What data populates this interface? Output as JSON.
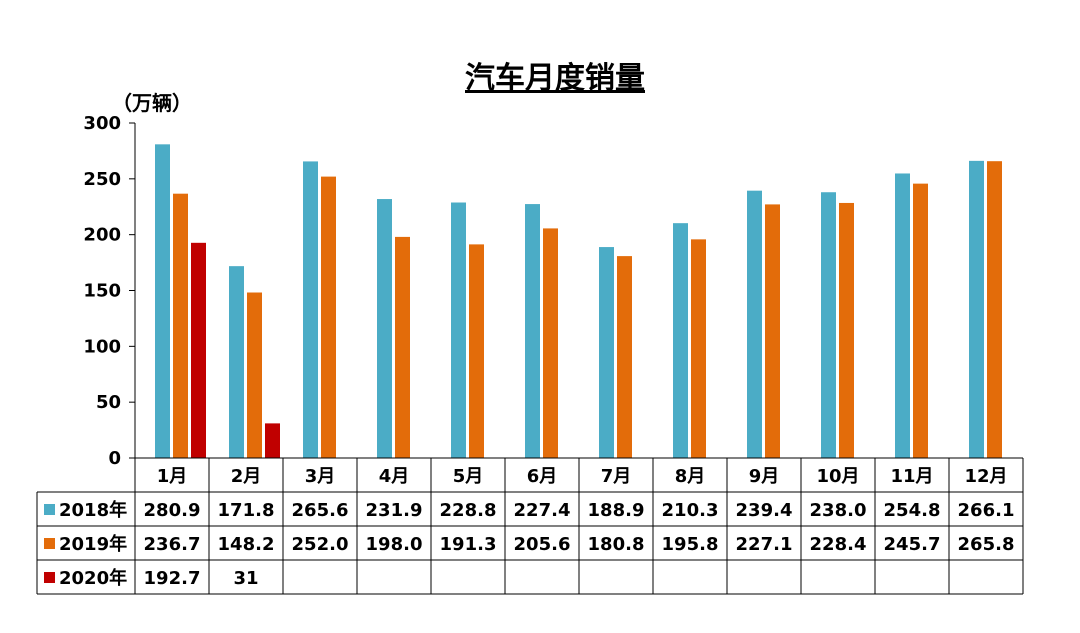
{
  "chart_data": {
    "type": "bar",
    "title": "汽车月度销量",
    "ylabel": "（万辆）",
    "ylim": [
      0,
      300
    ],
    "yticks": [
      0,
      50,
      100,
      150,
      200,
      250,
      300
    ],
    "grid": false,
    "legend_placement": "data-table-left",
    "categories": [
      "1月",
      "2月",
      "3月",
      "4月",
      "5月",
      "6月",
      "7月",
      "8月",
      "9月",
      "10月",
      "11月",
      "12月"
    ],
    "series": [
      {
        "name": "2018年",
        "color": "#4bacc6",
        "values": [
          280.9,
          171.8,
          265.6,
          231.9,
          228.8,
          227.4,
          188.9,
          210.3,
          239.4,
          238.0,
          254.8,
          266.1
        ],
        "labels": [
          "280.9",
          "171.8",
          "265.6",
          "231.9",
          "228.8",
          "227.4",
          "188.9",
          "210.3",
          "239.4",
          "238.0",
          "254.8",
          "266.1"
        ]
      },
      {
        "name": "2019年",
        "color": "#e36c0a",
        "values": [
          236.7,
          148.2,
          252.0,
          198.0,
          191.3,
          205.6,
          180.8,
          195.8,
          227.1,
          228.4,
          245.7,
          265.8
        ],
        "labels": [
          "236.7",
          "148.2",
          "252.0",
          "198.0",
          "191.3",
          "205.6",
          "180.8",
          "195.8",
          "227.1",
          "228.4",
          "245.7",
          "265.8"
        ]
      },
      {
        "name": "2020年",
        "color": "#c00000",
        "values": [
          192.7,
          31,
          null,
          null,
          null,
          null,
          null,
          null,
          null,
          null,
          null,
          null
        ],
        "labels": [
          "192.7",
          "31",
          "",
          "",
          "",
          "",
          "",
          "",
          "",
          "",
          "",
          ""
        ]
      }
    ]
  }
}
